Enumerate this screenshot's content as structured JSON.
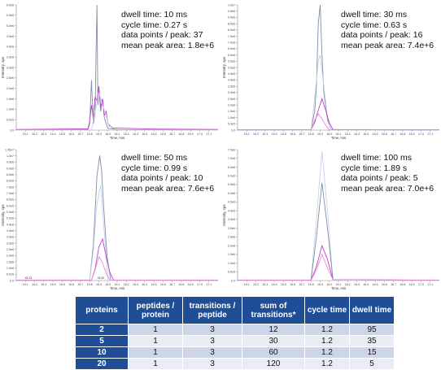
{
  "colors": {
    "series_a": "#7d8fa8",
    "series_b": "#c23fd2",
    "series_c": "#e08bd8",
    "series_d": "#c5d3e6",
    "header_bg": "#1f4e96",
    "row_a": "#cdd6e8",
    "row_b": "#e8ecf4"
  },
  "chart_data": [
    {
      "type": "line",
      "title": "",
      "xlabel": "Time, min",
      "ylabel": "Intensity, cps",
      "xlim": [
        15.0,
        17.2
      ],
      "ylim": [
        0,
        6000000
      ],
      "x_ticks": [
        "15.1",
        "15.2",
        "15.3",
        "15.4",
        "15.5",
        "15.6",
        "15.7",
        "15.8",
        "15.9",
        "16.0",
        "16.1",
        "16.2",
        "16.3",
        "16.4",
        "16.5",
        "16.6",
        "16.7",
        "16.8",
        "16.9",
        "17.0",
        "17.1"
      ],
      "y_ticks": [
        "0.0",
        "5.0e5",
        "1.0e6",
        "1.5e6",
        "2.0e6",
        "2.5e6",
        "3.0e6",
        "3.5e6",
        "4.0e6",
        "4.5e6",
        "5.0e6",
        "5.5e6",
        "6.0e6"
      ],
      "stats": {
        "dwell": "dwell time: 10 ms",
        "cycle": "cycle time: 0.27 s",
        "points": "data points / peak: 37",
        "area": "mean peak area:  1.8e+6"
      },
      "series": [
        {
          "color": "#7d8fa8",
          "x": [
            15.0,
            15.78,
            15.8,
            15.82,
            15.84,
            15.86,
            15.87,
            15.88,
            15.89,
            15.9,
            15.92,
            15.94,
            15.96,
            15.98,
            16.0,
            16.1,
            17.2
          ],
          "y": [
            20000,
            20000,
            300000,
            2400000,
            300000,
            800000,
            3800000,
            6000000,
            1200000,
            2000000,
            900000,
            1500000,
            600000,
            300000,
            80000,
            20000,
            20000
          ]
        },
        {
          "color": "#c23fd2",
          "x": [
            15.0,
            15.5,
            15.78,
            15.8,
            15.82,
            15.84,
            15.86,
            15.88,
            15.9,
            15.92,
            15.94,
            15.96,
            15.98,
            16.0,
            16.05,
            16.5,
            17.2
          ],
          "y": [
            30000,
            50000,
            60000,
            400000,
            1200000,
            600000,
            1600000,
            1400000,
            2100000,
            1100000,
            1500000,
            700000,
            900000,
            300000,
            100000,
            50000,
            30000
          ]
        },
        {
          "color": "#c5d3e6",
          "x": [
            15.0,
            15.82,
            15.86,
            15.9,
            15.94,
            15.98,
            16.02,
            17.2
          ],
          "y": [
            0,
            0,
            900000,
            1800000,
            1200000,
            700000,
            0,
            0
          ]
        }
      ]
    },
    {
      "type": "line",
      "title": "",
      "xlabel": "Time, min",
      "ylabel": "Intensity, cps",
      "xlim": [
        15.0,
        17.2
      ],
      "ylim": [
        0,
        10000000
      ],
      "x_ticks": [
        "15.1",
        "15.2",
        "15.3",
        "15.4",
        "15.5",
        "15.6",
        "15.7",
        "15.8",
        "15.9",
        "16.0",
        "16.1",
        "16.2",
        "16.3",
        "16.4",
        "16.5",
        "16.6",
        "16.7",
        "16.8",
        "16.9",
        "17.0",
        "17.1"
      ],
      "y_ticks": [
        "0.0",
        "5.0e5",
        "1.0e6",
        "1.5e6",
        "2.0e6",
        "2.5e6",
        "3.0e6",
        "3.5e6",
        "4.0e6",
        "4.5e6",
        "5.0e6",
        "5.5e6",
        "6.0e6",
        "6.5e6",
        "7.0e6",
        "7.5e6",
        "8.0e6",
        "8.5e6",
        "9.0e6",
        "9.5e6",
        "1.0e7"
      ],
      "stats": {
        "dwell": "dwell time: 30 ms",
        "cycle": "cycle time: 0.63 s",
        "points": "data points / peak: 16",
        "area": "mean peak area:  7.4e+6"
      },
      "series": [
        {
          "color": "#7d8fa8",
          "x": [
            15.0,
            15.8,
            15.84,
            15.86,
            15.88,
            15.9,
            15.92,
            15.94,
            15.98,
            16.02,
            17.2
          ],
          "y": [
            20000,
            20000,
            1500000,
            3500000,
            8500000,
            10000000,
            6000000,
            3000000,
            800000,
            50000,
            20000
          ]
        },
        {
          "color": "#c5d3e6",
          "x": [
            15.0,
            15.8,
            15.84,
            15.88,
            15.9,
            15.94,
            15.98,
            16.02,
            17.2
          ],
          "y": [
            0,
            0,
            2500000,
            5500000,
            6000000,
            3500000,
            1000000,
            0,
            0
          ]
        },
        {
          "color": "#c23fd2",
          "x": [
            15.0,
            15.8,
            15.84,
            15.88,
            15.92,
            15.96,
            16.0,
            16.04,
            17.2
          ],
          "y": [
            20000,
            30000,
            600000,
            1600000,
            2500000,
            1600000,
            600000,
            40000,
            20000
          ]
        },
        {
          "color": "#e08bd8",
          "x": [
            15.0,
            15.8,
            15.84,
            15.88,
            15.92,
            15.96,
            16.0,
            17.2
          ],
          "y": [
            20000,
            30000,
            800000,
            1300000,
            900000,
            400000,
            40000,
            20000
          ]
        }
      ]
    },
    {
      "type": "line",
      "title": "",
      "xlabel": "Time, min",
      "ylabel": "Intensity, cps",
      "xlim": [
        15.0,
        17.2
      ],
      "ylim": [
        0,
        11000000
      ],
      "x_ticks": [
        "15.1",
        "15.2",
        "15.3",
        "15.4",
        "15.5",
        "15.6",
        "15.7",
        "15.8",
        "15.9",
        "16.0",
        "16.1",
        "16.2",
        "16.3",
        "16.4",
        "16.5",
        "16.6",
        "16.7",
        "16.8",
        "16.9",
        "17.0",
        "17.1"
      ],
      "y_ticks": [
        "0.0",
        "5.0e5",
        "1.0e6",
        "1.5e6",
        "2.0e6",
        "2.5e6",
        "3.0e6",
        "3.5e6",
        "4.0e6",
        "4.5e6",
        "5.0e6",
        "5.5e6",
        "6.0e6",
        "6.5e6",
        "7.0e6",
        "7.5e6",
        "8.0e6",
        "8.5e6",
        "9.0e6",
        "9.5e6",
        "1.0e7",
        "1.05e7"
      ],
      "annotations": [
        {
          "x": 15.13,
          "text": "15.13"
        },
        {
          "x": 15.92,
          "text": "15.92"
        }
      ],
      "stats": {
        "dwell": "dwell time: 50 ms",
        "cycle": "cycle time: 0.99 s",
        "points": "data points / peak: 10",
        "area": "mean peak area:  7.6e+6"
      },
      "series": [
        {
          "color": "#7d8fa8",
          "x": [
            15.0,
            15.8,
            15.84,
            15.88,
            15.91,
            15.93,
            15.95,
            15.99,
            16.03,
            17.2
          ],
          "y": [
            20000,
            20000,
            3000000,
            8800000,
            10500000,
            9300000,
            6500000,
            2000000,
            50000,
            20000
          ]
        },
        {
          "color": "#c5d3e6",
          "x": [
            15.0,
            15.8,
            15.84,
            15.88,
            15.92,
            15.96,
            16.0,
            17.2
          ],
          "y": [
            0,
            0,
            2500000,
            6500000,
            8000000,
            4000000,
            0,
            0
          ]
        },
        {
          "color": "#c23fd2",
          "x": [
            15.0,
            15.82,
            15.86,
            15.9,
            15.94,
            15.98,
            16.02,
            16.06,
            17.2
          ],
          "y": [
            20000,
            20000,
            1000000,
            2800000,
            3500000,
            2000000,
            700000,
            50000,
            20000
          ]
        },
        {
          "color": "#e08bd8",
          "x": [
            15.0,
            15.82,
            15.86,
            15.9,
            15.94,
            15.98,
            16.02,
            17.2
          ],
          "y": [
            20000,
            20000,
            900000,
            2000000,
            1500000,
            600000,
            50000,
            20000
          ]
        }
      ]
    },
    {
      "type": "line",
      "title": "",
      "xlabel": "Time, min",
      "ylabel": "Intensity, cps",
      "xlim": [
        15.0,
        17.2
      ],
      "ylim": [
        0,
        7500000
      ],
      "x_ticks": [
        "15.1",
        "15.2",
        "15.3",
        "15.4",
        "15.5",
        "15.6",
        "15.7",
        "15.8",
        "15.9",
        "16.0",
        "16.1",
        "16.2",
        "16.3",
        "16.4",
        "16.5",
        "16.6",
        "16.7",
        "16.8",
        "16.9",
        "17.0",
        "17.1"
      ],
      "y_ticks": [
        "0.0",
        "5.0e5",
        "1.0e6",
        "1.5e6",
        "2.0e6",
        "2.5e6",
        "3.0e6",
        "3.5e6",
        "4.0e6",
        "4.5e6",
        "5.0e6",
        "5.5e6",
        "6.0e6",
        "6.5e6",
        "7.0e6",
        "7.5e6"
      ],
      "stats": {
        "dwell": "dwell time: 100 ms",
        "cycle": "cycle time: 1.89 s",
        "points": "data points / peak: 5",
        "area": "mean peak area:  7.0e+6"
      },
      "series": [
        {
          "color": "#c5d3e6",
          "x": [
            15.0,
            15.8,
            15.86,
            15.92,
            15.98,
            16.04,
            17.2
          ],
          "y": [
            0,
            0,
            3500000,
            7400000,
            4000000,
            0,
            0
          ]
        },
        {
          "color": "#7d8fa8",
          "x": [
            15.0,
            15.8,
            15.86,
            15.92,
            15.98,
            16.04,
            17.2
          ],
          "y": [
            20000,
            20000,
            2500000,
            5600000,
            3000000,
            50000,
            20000
          ]
        },
        {
          "color": "#c23fd2",
          "x": [
            15.0,
            15.8,
            15.86,
            15.92,
            15.98,
            16.04,
            17.2
          ],
          "y": [
            20000,
            20000,
            800000,
            2000000,
            1200000,
            50000,
            20000
          ]
        },
        {
          "color": "#e08bd8",
          "x": [
            15.0,
            15.8,
            15.86,
            15.92,
            15.98,
            16.04,
            17.2
          ],
          "y": [
            20000,
            20000,
            600000,
            1500000,
            700000,
            50000,
            20000
          ]
        }
      ]
    },
    {
      "type": "table",
      "columns": [
        "proteins",
        "peptides / protein",
        "transitions / peptide",
        "sum of transitions*",
        "cycle time",
        "dwell time"
      ],
      "rows": [
        [
          "2",
          "1",
          "3",
          "12",
          "1.2",
          "95"
        ],
        [
          "5",
          "1",
          "3",
          "30",
          "1.2",
          "35"
        ],
        [
          "10",
          "1",
          "3",
          "60",
          "1.2",
          "15"
        ],
        [
          "20",
          "1",
          "3",
          "120",
          "1.2",
          "5"
        ]
      ]
    }
  ]
}
